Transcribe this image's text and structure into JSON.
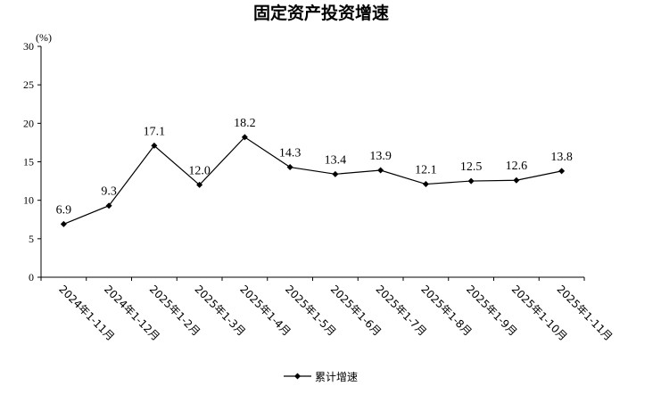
{
  "chart_data": {
    "type": "line",
    "title": "固定资产投资增速",
    "unit": "(%)",
    "ylim": [
      0,
      30
    ],
    "yticks": [
      "0",
      "5",
      "10",
      "15",
      "20",
      "25",
      "30"
    ],
    "categories": [
      "2024年1-11月",
      "2024年1-12月",
      "2025年1-2月",
      "2025年1-3月",
      "2025年1-4月",
      "2025年1-5月",
      "2025年1-6月",
      "2025年1-7月",
      "2025年1-8月",
      "2025年1-9月",
      "2025年1-10月",
      "2025年1-11月"
    ],
    "series": [
      {
        "name": "累计增速",
        "values": [
          6.9,
          9.3,
          17.1,
          12.0,
          18.2,
          14.3,
          13.4,
          13.9,
          12.1,
          12.5,
          12.6,
          13.8
        ],
        "labels": [
          "6.9",
          "9.3",
          "17.1",
          "12.0",
          "18.2",
          "14.3",
          "13.4",
          "13.9",
          "12.1",
          "12.5",
          "12.6",
          "13.8"
        ]
      }
    ],
    "grid": false,
    "legend_position": "bottom",
    "colors": {
      "line": "#000000",
      "marker": "#000000",
      "axis": "#000000"
    }
  }
}
